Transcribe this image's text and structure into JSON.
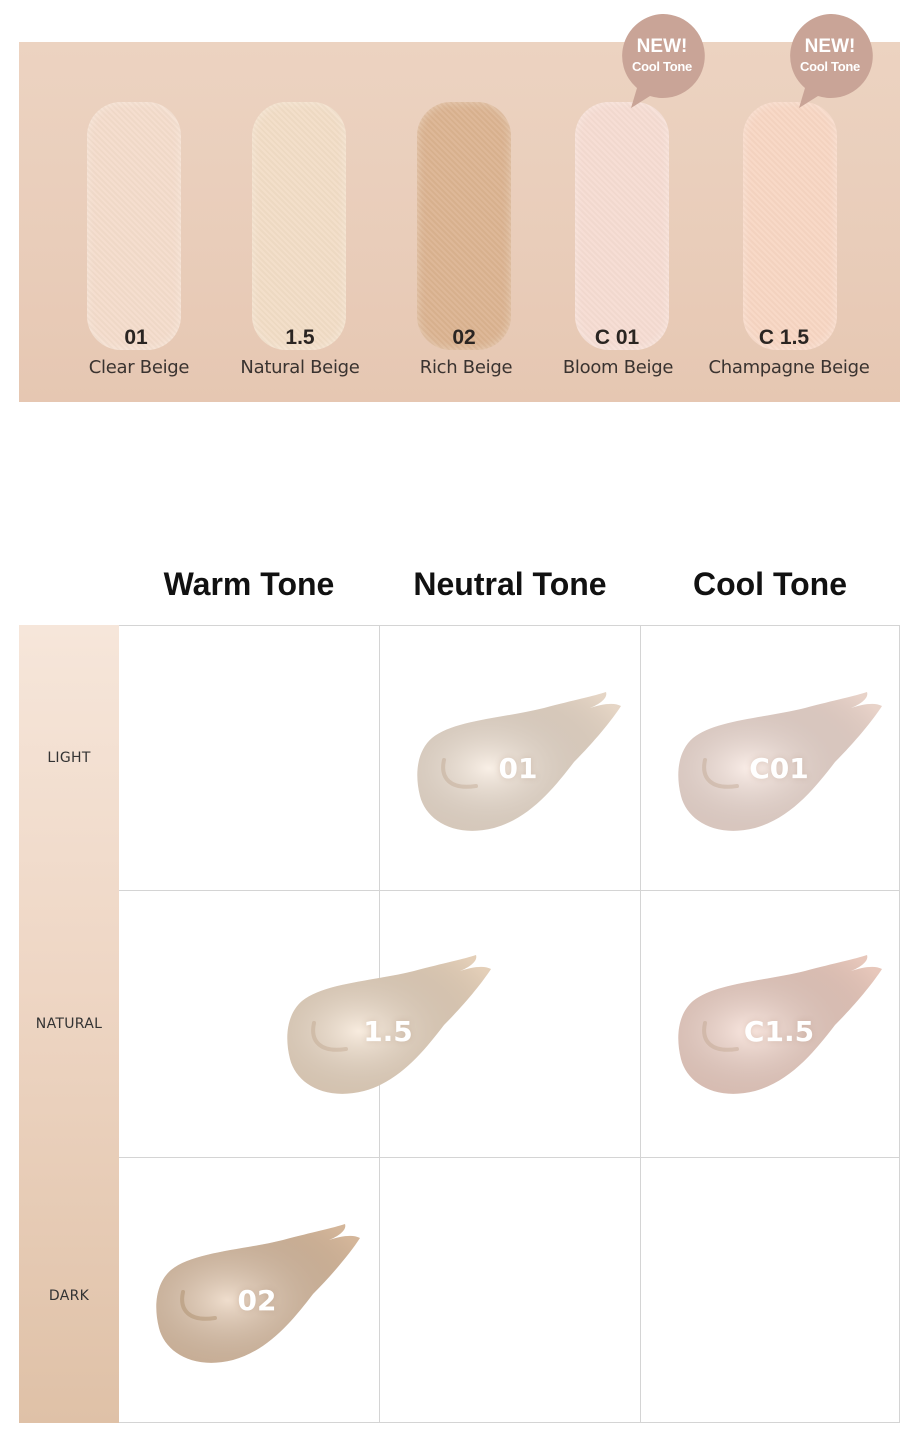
{
  "swatches": [
    {
      "code": "01",
      "name": "Clear Beige",
      "color": "#f4dccb",
      "new": false
    },
    {
      "code": "1.5",
      "name": "Natural Beige",
      "color": "#f2ddc6",
      "new": false
    },
    {
      "code": "02",
      "name": "Rich Beige",
      "color": "#dbb390",
      "new": false
    },
    {
      "code": "C 01",
      "name": "Bloom Beige",
      "color": "#f6dcd2",
      "new": true
    },
    {
      "code": "C 1.5",
      "name": "Champagne Beige",
      "color": "#f8d6c3",
      "new": true
    }
  ],
  "badge": {
    "line1": "NEW!",
    "line2": "Cool Tone",
    "color": "#c9a497"
  },
  "tone_chart": {
    "columns": [
      "Warm Tone",
      "Neutral Tone",
      "Cool Tone"
    ],
    "rows": [
      "LIGHT",
      "NATURAL",
      "DARK"
    ],
    "cells": [
      {
        "label": "01",
        "color": "#f4e3d2"
      },
      {
        "label": "C01",
        "color": "#f7e0d6"
      },
      {
        "label": "1.5",
        "color": "#f2dcc4"
      },
      {
        "label": "C1.5",
        "color": "#f6d4c7"
      },
      {
        "label": "02",
        "color": "#e2c2a4"
      }
    ]
  }
}
